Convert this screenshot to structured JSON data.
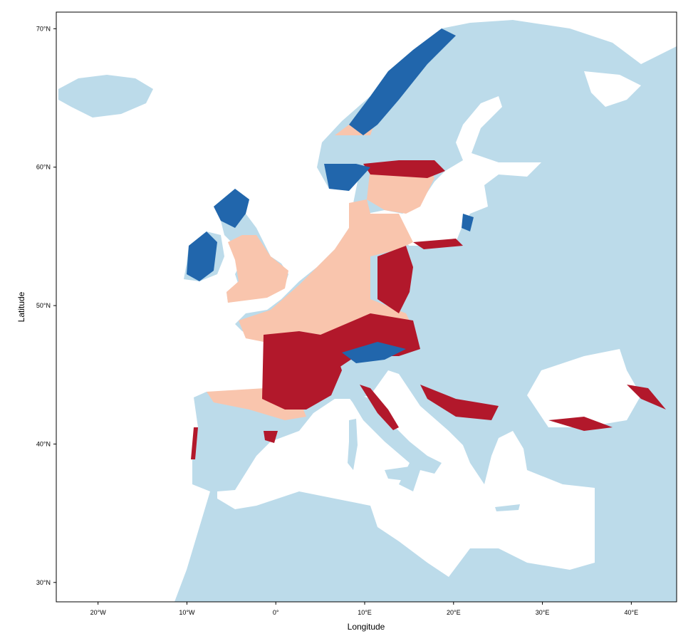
{
  "chart_data": {
    "type": "map",
    "x_label": "Longitude",
    "y_label": "Latitude",
    "xlim": [
      -24.7,
      45.1
    ],
    "ylim": [
      28.6,
      71.2
    ],
    "xticks": [
      {
        "value": -20,
        "label": "20°W"
      },
      {
        "value": -10,
        "label": "10°W"
      },
      {
        "value": 0,
        "label": "0°"
      },
      {
        "value": 10,
        "label": "10°E"
      },
      {
        "value": 20,
        "label": "20°E"
      },
      {
        "value": 30,
        "label": "30°E"
      },
      {
        "value": 40,
        "label": "40°E"
      }
    ],
    "yticks": [
      {
        "value": 30,
        "label": "30°N"
      },
      {
        "value": 40,
        "label": "40°N"
      },
      {
        "value": 50,
        "label": "50°N"
      },
      {
        "value": 60,
        "label": "60°N"
      },
      {
        "value": 70,
        "label": "70°N"
      }
    ]
  }
}
